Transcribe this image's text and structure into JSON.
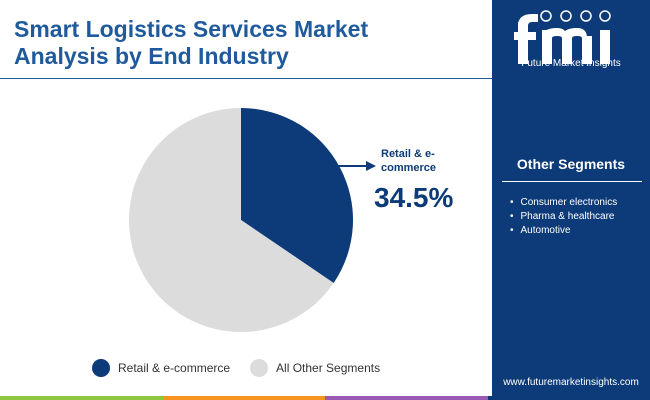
{
  "header": {
    "title_line1": "Smart Logistics Services Market",
    "title_line2": "Analysis by End Industry"
  },
  "brand": {
    "logo_text": "Future Market Insights",
    "website": "www.futuremarketinsights.com"
  },
  "sidebar": {
    "heading": "Other Segments",
    "items": [
      "Consumer electronics",
      "Pharma & healthcare",
      "Automotive"
    ]
  },
  "callout": {
    "label": "Retail & e-commerce",
    "value": "34.5%"
  },
  "colors": {
    "primary": "#0d3a78",
    "accent": "#1f5a9c",
    "other": "#dcdcdc",
    "bottom_bar": [
      "#8dc63f",
      "#f7941d",
      "#9b59b6",
      "#0d3a78"
    ]
  },
  "chart_data": {
    "type": "pie",
    "categories": [
      "Retail & e-commerce",
      "All Other Segments"
    ],
    "values": [
      34.5,
      65.5
    ],
    "colors": [
      "#0d3a78",
      "#dcdcdc"
    ],
    "legend": {
      "position": "bottom",
      "entries": [
        "Retail & e-commerce",
        "All Other Segments"
      ]
    }
  }
}
